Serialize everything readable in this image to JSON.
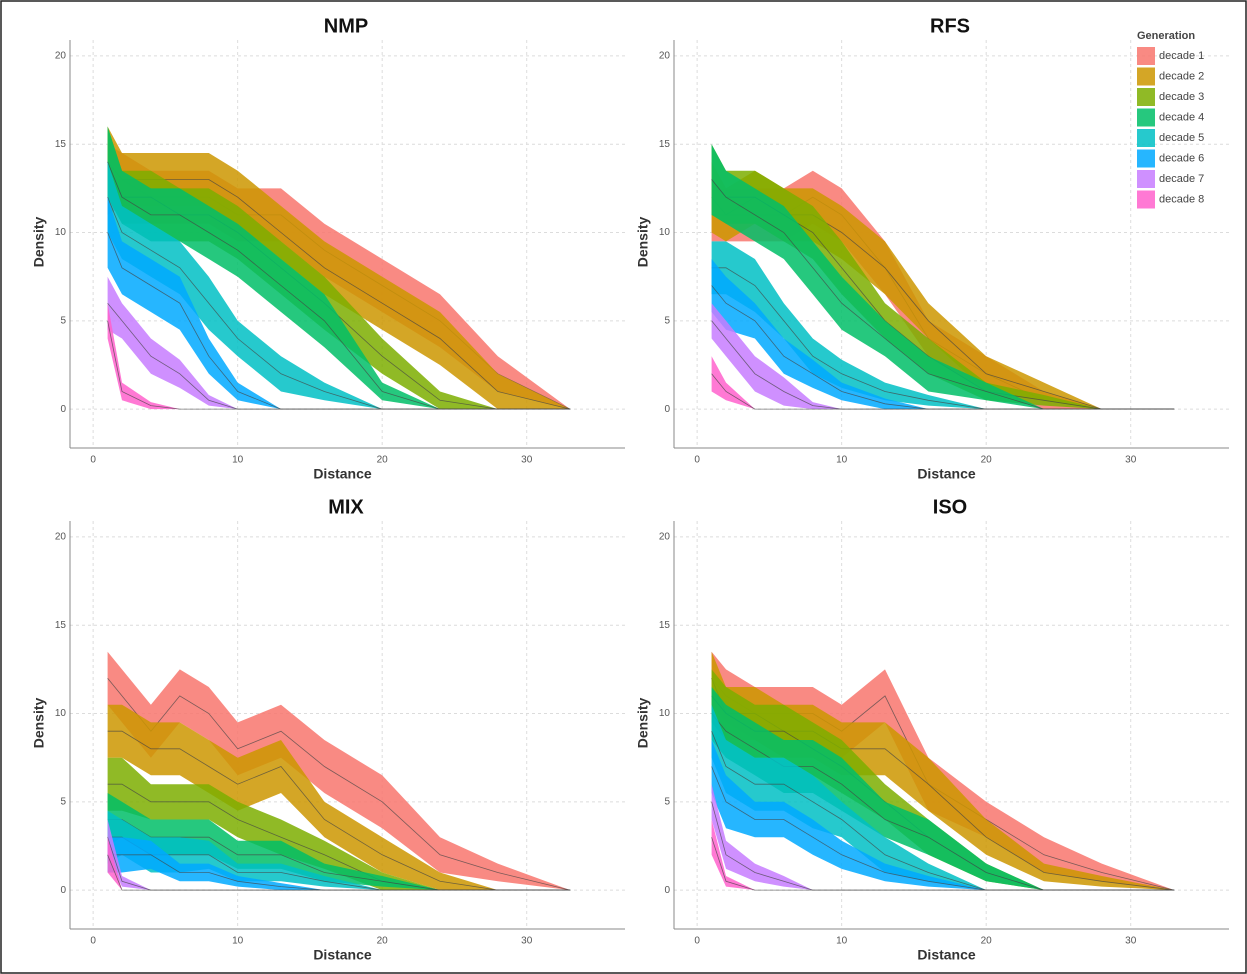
{
  "legend": {
    "title": "Generation",
    "position": "top-right",
    "entries": [
      {
        "name": "decade 1",
        "color": "#F8766D"
      },
      {
        "name": "decade 2",
        "color": "#CD9600"
      },
      {
        "name": "decade 3",
        "color": "#7CAE00"
      },
      {
        "name": "decade 4",
        "color": "#00BE67"
      },
      {
        "name": "decade 5",
        "color": "#00BFC4"
      },
      {
        "name": "decade 6",
        "color": "#00A9FF"
      },
      {
        "name": "decade 7",
        "color": "#C77CFF"
      },
      {
        "name": "decade 8",
        "color": "#FF61CC"
      }
    ]
  },
  "chart_data": [
    {
      "type": "ribbon",
      "title": "NMP",
      "x_label": "Distance",
      "y_label": "Density",
      "grid": true,
      "legend": false,
      "xlim": [
        -1.6,
        36.8
      ],
      "ylim": [
        -2.2,
        20.9
      ],
      "xticks": [
        0,
        10,
        20,
        30
      ],
      "yticks": [
        0,
        5,
        10,
        15,
        20
      ],
      "x": [
        1,
        2,
        4,
        6,
        8,
        10,
        13,
        16,
        20,
        24,
        28,
        33
      ],
      "series": [
        {
          "values": [
            13,
            13,
            12,
            12,
            12,
            11,
            11,
            9,
            7,
            5,
            2,
            0
          ],
          "errors": [
            2,
            1.5,
            1.5,
            1.5,
            1.5,
            1.5,
            1.5,
            1.5,
            1.5,
            1.5,
            1,
            0
          ]
        },
        {
          "values": [
            14,
            13,
            13,
            13,
            13,
            12,
            10,
            8,
            6,
            4,
            1,
            0
          ],
          "errors": [
            2,
            1.5,
            1.5,
            1.5,
            1.5,
            1.5,
            1.5,
            1.5,
            1.5,
            1.5,
            1,
            0
          ]
        },
        {
          "values": [
            14,
            12,
            12,
            11,
            11,
            10,
            8,
            6,
            3,
            0.5,
            0,
            0
          ],
          "errors": [
            2,
            1.5,
            1.5,
            1.5,
            1.5,
            1.5,
            1.5,
            1.5,
            1,
            0.5,
            0,
            0
          ]
        },
        {
          "values": [
            14,
            12,
            11,
            11,
            10,
            9,
            7,
            5,
            1,
            0,
            0,
            0
          ],
          "errors": [
            2,
            1.5,
            1.5,
            1.5,
            1.5,
            1.5,
            1.5,
            1.5,
            0.5,
            0,
            0,
            0
          ]
        },
        {
          "values": [
            12,
            10,
            9,
            8,
            6,
            4,
            2,
            1,
            0,
            0,
            0,
            0
          ],
          "errors": [
            2,
            1.5,
            1.5,
            1.5,
            1.5,
            1,
            1,
            0.5,
            0,
            0,
            0,
            0
          ]
        },
        {
          "values": [
            10,
            8,
            7,
            6,
            3,
            1,
            0,
            0,
            0,
            0,
            0,
            0
          ],
          "errors": [
            2,
            1.5,
            1.5,
            1.5,
            1,
            0.5,
            0,
            0,
            0,
            0,
            0,
            0
          ]
        },
        {
          "values": [
            6,
            5,
            3,
            2,
            0.5,
            0,
            0,
            0,
            0,
            0,
            0,
            0
          ],
          "errors": [
            1.5,
            1,
            1,
            0.8,
            0.3,
            0,
            0,
            0,
            0,
            0,
            0,
            0
          ]
        },
        {
          "values": [
            5,
            1,
            0.2,
            0,
            0,
            0,
            0,
            0,
            0,
            0,
            0,
            0
          ],
          "errors": [
            1,
            0.5,
            0.2,
            0,
            0,
            0,
            0,
            0,
            0,
            0,
            0,
            0
          ]
        }
      ]
    },
    {
      "type": "ribbon",
      "title": "RFS",
      "x_label": "Distance",
      "y_label": "Density",
      "grid": true,
      "legend": true,
      "xlim": [
        -1.6,
        36.8
      ],
      "ylim": [
        -2.2,
        20.9
      ],
      "xticks": [
        0,
        10,
        20,
        30
      ],
      "yticks": [
        0,
        5,
        10,
        15,
        20
      ],
      "x": [
        1,
        2,
        4,
        6,
        8,
        10,
        13,
        16,
        20,
        24,
        28,
        33
      ],
      "series": [
        {
          "values": [
            11,
            11,
            11,
            11,
            12,
            11,
            8,
            4,
            2,
            0.5,
            0,
            0
          ],
          "errors": [
            1.5,
            1.5,
            1.5,
            1.5,
            1.5,
            1.5,
            1.5,
            1,
            1,
            0.5,
            0,
            0
          ]
        },
        {
          "values": [
            12,
            11,
            12,
            11,
            11,
            10,
            8,
            5,
            2,
            1,
            0,
            0
          ],
          "errors": [
            2,
            1.5,
            1.5,
            1.5,
            1.5,
            1.5,
            1.5,
            1,
            1,
            0.5,
            0,
            0
          ]
        },
        {
          "values": [
            13,
            12,
            12,
            11,
            10,
            8,
            5,
            3,
            1,
            0.5,
            0,
            0
          ],
          "errors": [
            2,
            1.5,
            1.5,
            1.5,
            1.5,
            1.5,
            1,
            1,
            0.5,
            0.3,
            0,
            0
          ]
        },
        {
          "values": [
            13,
            12,
            11,
            10,
            8,
            6,
            4,
            2,
            1,
            0,
            0,
            0
          ],
          "errors": [
            2,
            1.5,
            1.5,
            1.5,
            1.5,
            1.5,
            1,
            1,
            0.5,
            0,
            0,
            0
          ]
        },
        {
          "values": [
            8,
            8,
            7,
            5,
            3,
            2,
            1,
            0.5,
            0,
            0,
            0,
            0
          ],
          "errors": [
            1.5,
            1.5,
            1.5,
            1,
            1,
            0.8,
            0.5,
            0.3,
            0,
            0,
            0,
            0
          ]
        },
        {
          "values": [
            7,
            6,
            5,
            3,
            2,
            1,
            0.3,
            0,
            0,
            0,
            0,
            0
          ],
          "errors": [
            1.5,
            1.5,
            1,
            1,
            0.8,
            0.5,
            0.3,
            0,
            0,
            0,
            0,
            0
          ]
        },
        {
          "values": [
            5,
            4,
            2,
            1,
            0.2,
            0,
            0,
            0,
            0,
            0,
            0,
            0
          ],
          "errors": [
            1,
            1,
            1,
            0.8,
            0.2,
            0,
            0,
            0,
            0,
            0,
            0,
            0
          ]
        },
        {
          "values": [
            2,
            1,
            0,
            0,
            0,
            0,
            0,
            0,
            0,
            0,
            0,
            0
          ],
          "errors": [
            1,
            0.5,
            0,
            0,
            0,
            0,
            0,
            0,
            0,
            0,
            0,
            0
          ]
        }
      ]
    },
    {
      "type": "ribbon",
      "title": "MIX",
      "x_label": "Distance",
      "y_label": "Density",
      "grid": true,
      "legend": false,
      "xlim": [
        -1.6,
        36.8
      ],
      "ylim": [
        -2.2,
        20.9
      ],
      "xticks": [
        0,
        10,
        20,
        30
      ],
      "yticks": [
        0,
        5,
        10,
        15,
        20
      ],
      "x": [
        1,
        2,
        4,
        6,
        8,
        10,
        13,
        16,
        20,
        24,
        28,
        33
      ],
      "series": [
        {
          "values": [
            12,
            11,
            9,
            11,
            10,
            8,
            9,
            7,
            5,
            2,
            1,
            0
          ],
          "errors": [
            1.5,
            1.5,
            1.5,
            1.5,
            1.5,
            1.5,
            1.5,
            1.5,
            1.5,
            1,
            0.5,
            0
          ]
        },
        {
          "values": [
            9,
            9,
            8,
            8,
            7,
            6,
            7,
            4,
            2,
            0.5,
            0,
            0
          ],
          "errors": [
            1.5,
            1.5,
            1.5,
            1.5,
            1.5,
            1.5,
            1.5,
            1,
            1,
            0.5,
            0,
            0
          ]
        },
        {
          "values": [
            6,
            6,
            5,
            5,
            5,
            4,
            3,
            2,
            0.5,
            0,
            0,
            0
          ],
          "errors": [
            1.5,
            1.5,
            1,
            1,
            1,
            1,
            1,
            0.8,
            0.5,
            0,
            0,
            0
          ]
        },
        {
          "values": [
            4,
            4,
            3,
            3,
            3,
            2,
            2,
            1,
            0.5,
            0,
            0,
            0
          ],
          "errors": [
            1.5,
            1,
            1,
            1,
            1,
            0.8,
            0.8,
            0.5,
            0.3,
            0,
            0,
            0
          ]
        },
        {
          "values": [
            3,
            3,
            2,
            2,
            2,
            1,
            1,
            0.5,
            0,
            0,
            0,
            0
          ],
          "errors": [
            1.5,
            1,
            1,
            1,
            0.8,
            0.5,
            0.5,
            0.3,
            0,
            0,
            0,
            0
          ]
        },
        {
          "values": [
            2,
            2,
            2,
            1,
            1,
            0.5,
            0.2,
            0,
            0,
            0,
            0,
            0
          ],
          "errors": [
            1,
            1,
            0.8,
            0.5,
            0.5,
            0.3,
            0.2,
            0,
            0,
            0,
            0,
            0
          ]
        },
        {
          "values": [
            3,
            0.5,
            0,
            0,
            0,
            0,
            0,
            0,
            0,
            0,
            0,
            0
          ],
          "errors": [
            1,
            0.3,
            0,
            0,
            0,
            0,
            0,
            0,
            0,
            0,
            0,
            0
          ]
        },
        {
          "values": [
            2,
            0,
            0,
            0,
            0,
            0,
            0,
            0,
            0,
            0,
            0,
            0
          ],
          "errors": [
            1,
            0,
            0,
            0,
            0,
            0,
            0,
            0,
            0,
            0,
            0,
            0
          ]
        }
      ]
    },
    {
      "type": "ribbon",
      "title": "ISO",
      "x_label": "Distance",
      "y_label": "Density",
      "grid": true,
      "legend": false,
      "xlim": [
        -1.6,
        36.8
      ],
      "ylim": [
        -2.2,
        20.9
      ],
      "xticks": [
        0,
        10,
        20,
        30
      ],
      "yticks": [
        0,
        5,
        10,
        15,
        20
      ],
      "x": [
        1,
        2,
        4,
        6,
        8,
        10,
        13,
        16,
        20,
        24,
        28,
        33
      ],
      "series": [
        {
          "values": [
            12,
            11,
            10,
            10,
            10,
            9,
            11,
            6,
            4,
            2,
            1,
            0
          ],
          "errors": [
            1.5,
            1.5,
            1.5,
            1.5,
            1.5,
            1.5,
            1.5,
            1.5,
            1,
            1,
            0.5,
            0
          ]
        },
        {
          "values": [
            12,
            10,
            10,
            9,
            9,
            8,
            8,
            6,
            3,
            1,
            0.5,
            0
          ],
          "errors": [
            1.5,
            1.5,
            1.5,
            1.5,
            1.5,
            1.5,
            1.5,
            1.5,
            1,
            0.5,
            0.3,
            0
          ]
        },
        {
          "values": [
            11,
            10,
            9,
            9,
            8,
            7,
            5,
            3,
            1,
            0,
            0,
            0
          ],
          "errors": [
            1.5,
            1.5,
            1.5,
            1.5,
            1.5,
            1.5,
            1,
            1,
            0.5,
            0,
            0,
            0
          ]
        },
        {
          "values": [
            10,
            9,
            8,
            7,
            7,
            6,
            4,
            3,
            1,
            0,
            0,
            0
          ],
          "errors": [
            1.5,
            1.5,
            1.5,
            1.5,
            1.5,
            1.5,
            1,
            1,
            0.5,
            0,
            0,
            0
          ]
        },
        {
          "values": [
            9,
            7,
            6,
            6,
            5,
            4,
            2,
            1,
            0,
            0,
            0,
            0
          ],
          "errors": [
            1.5,
            1.5,
            1.5,
            1.5,
            1.5,
            1,
            1,
            0.5,
            0,
            0,
            0,
            0
          ]
        },
        {
          "values": [
            7,
            5,
            4,
            4,
            3,
            2,
            1,
            0.5,
            0,
            0,
            0,
            0
          ],
          "errors": [
            1.5,
            1.5,
            1,
            1,
            1,
            0.8,
            0.5,
            0.3,
            0,
            0,
            0,
            0
          ]
        },
        {
          "values": [
            5,
            2,
            1,
            0.5,
            0,
            0,
            0,
            0,
            0,
            0,
            0,
            0
          ],
          "errors": [
            1,
            0.8,
            0.5,
            0.3,
            0,
            0,
            0,
            0,
            0,
            0,
            0,
            0
          ]
        },
        {
          "values": [
            3,
            0.5,
            0,
            0,
            0,
            0,
            0,
            0,
            0,
            0,
            0,
            0
          ],
          "errors": [
            1,
            0.3,
            0,
            0,
            0,
            0,
            0,
            0,
            0,
            0,
            0,
            0
          ]
        }
      ]
    }
  ]
}
